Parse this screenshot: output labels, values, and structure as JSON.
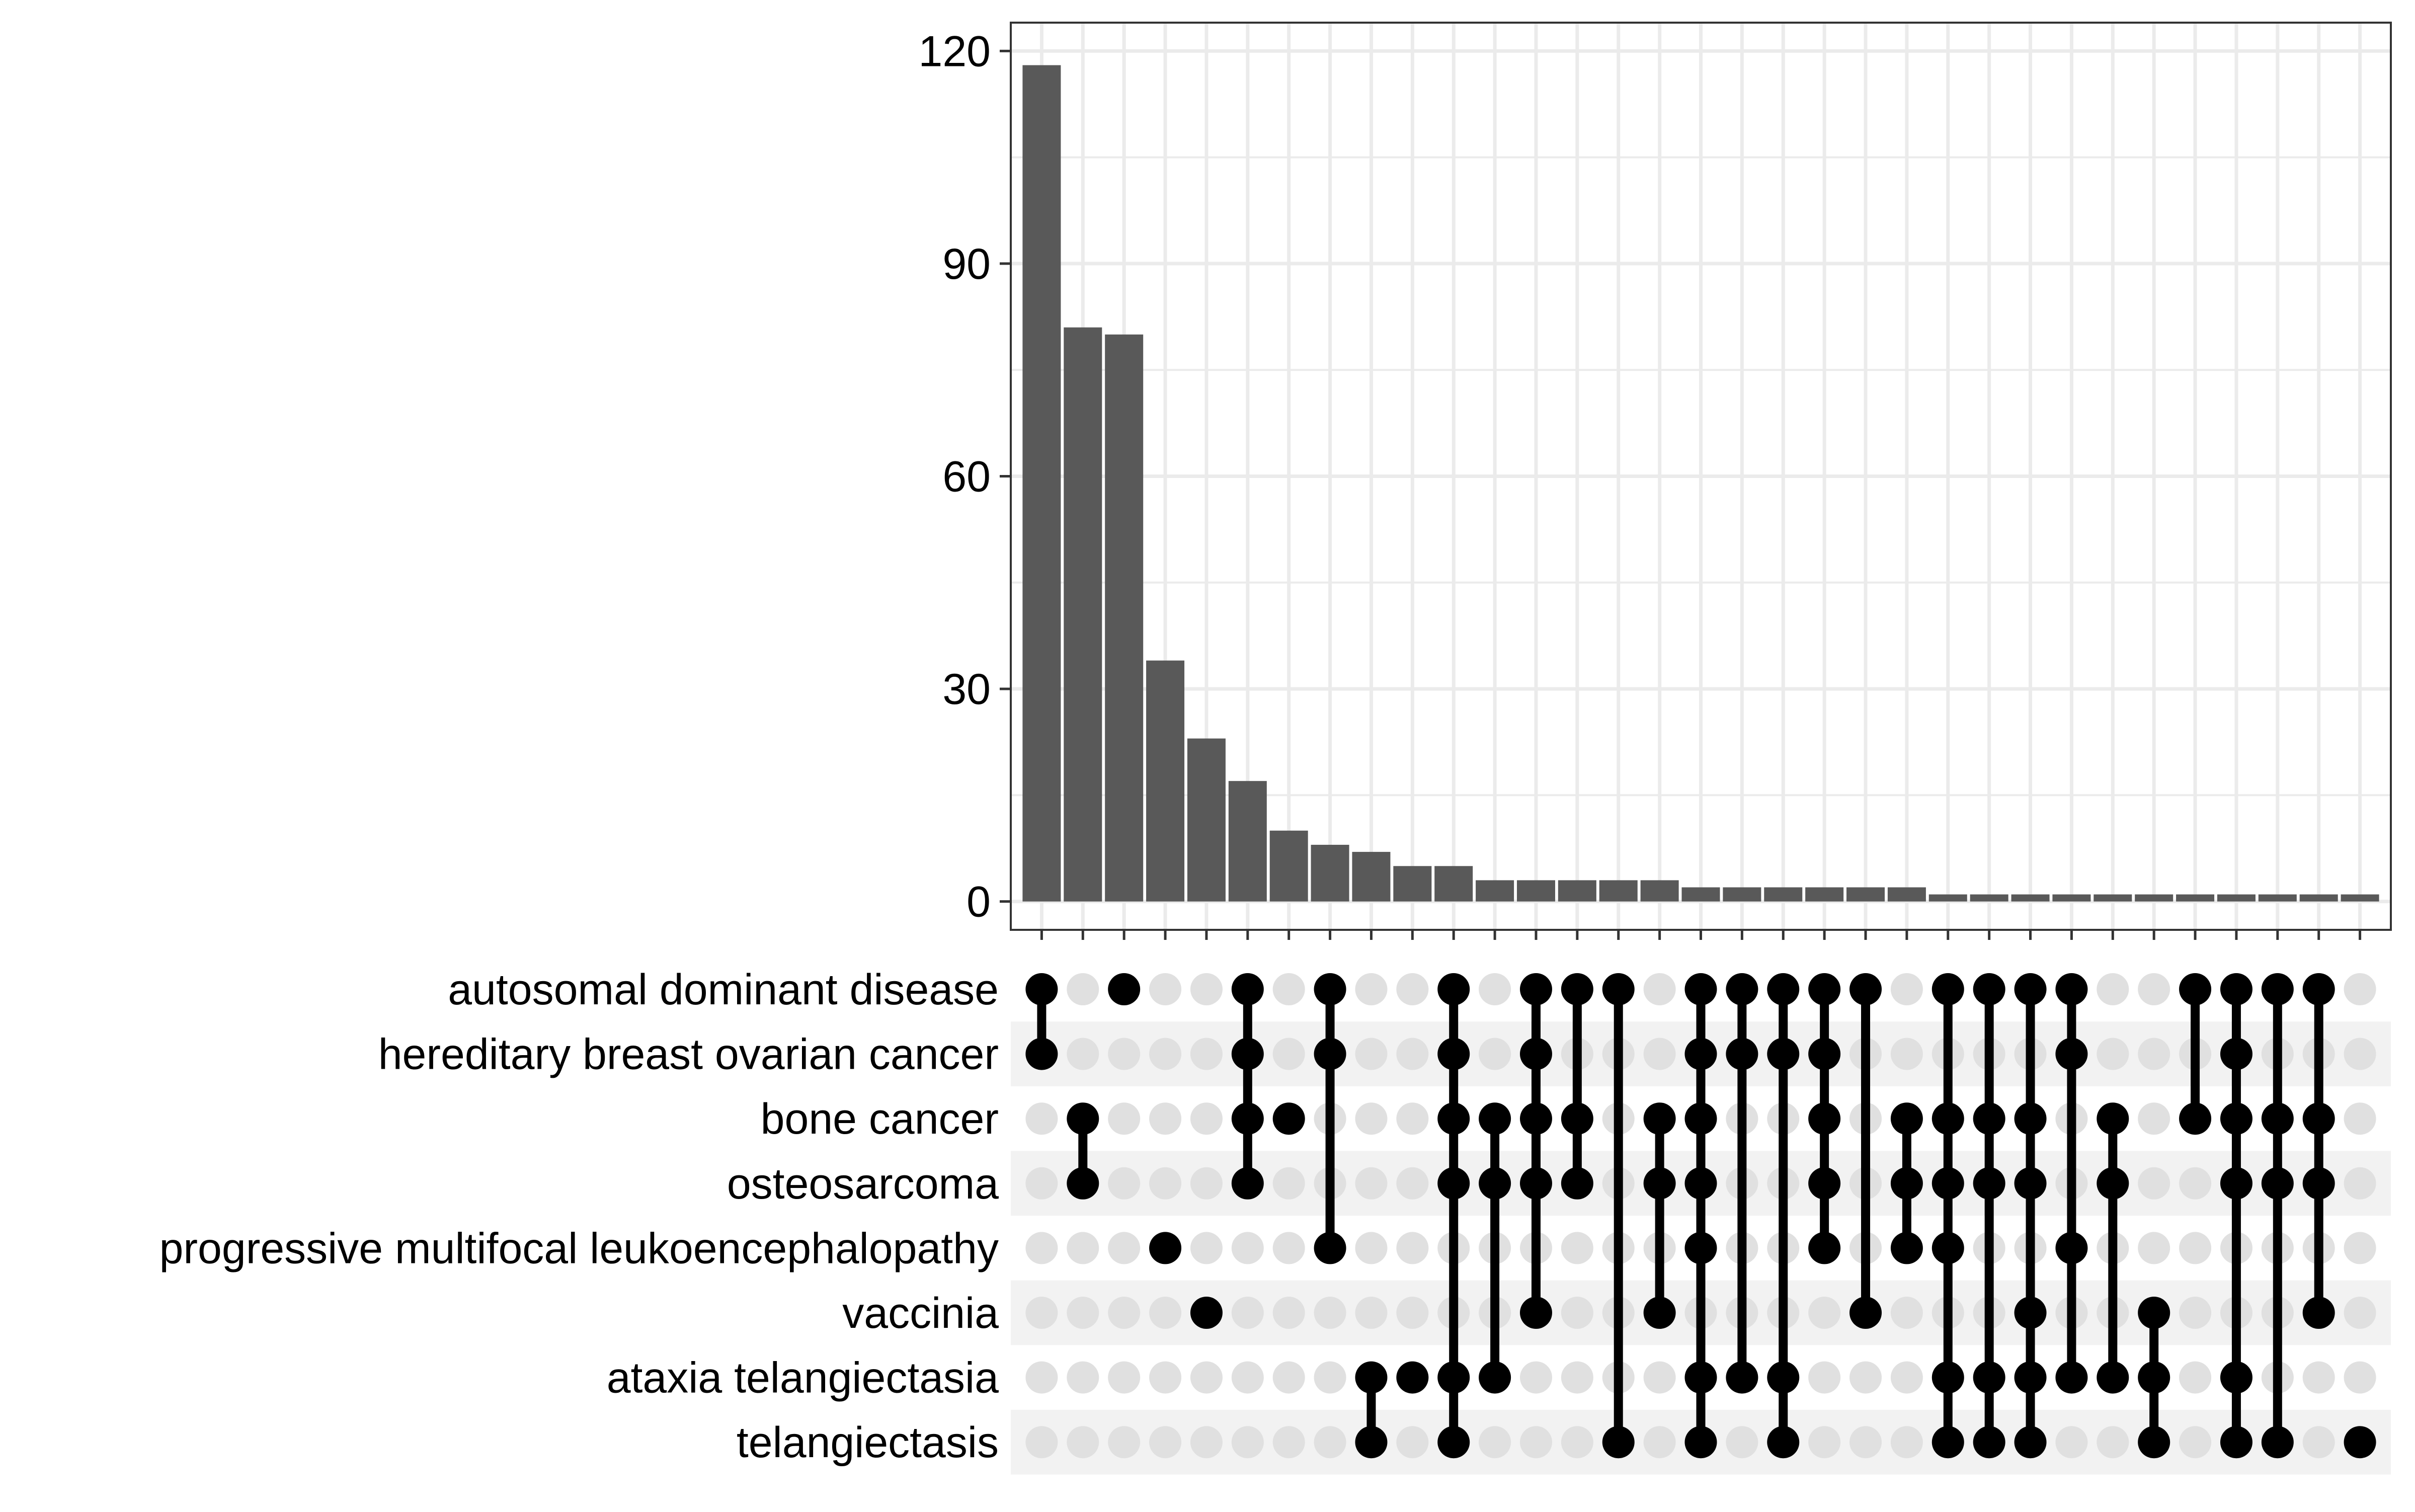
{
  "chart_data": {
    "type": "upset",
    "title": "",
    "xlabel": "",
    "ylabel": "",
    "ylim": [
      -4,
      124
    ],
    "yticks": [
      0,
      30,
      60,
      90,
      120
    ],
    "grid": true,
    "legend": "none",
    "sets": [
      "autosomal dominant disease",
      "hereditary breast ovarian cancer",
      "bone cancer",
      "osteosarcoma",
      "progressive multifocal leukoencephalopathy",
      "vaccinia",
      "ataxia telangiectasia",
      "telangiectasis"
    ],
    "intersections": [
      {
        "count": 118,
        "members": [
          0,
          1
        ]
      },
      {
        "count": 81,
        "members": [
          2,
          3
        ]
      },
      {
        "count": 80,
        "members": [
          0
        ]
      },
      {
        "count": 34,
        "members": [
          4
        ]
      },
      {
        "count": 23,
        "members": [
          5
        ]
      },
      {
        "count": 17,
        "members": [
          0,
          1,
          2,
          3
        ]
      },
      {
        "count": 10,
        "members": [
          2
        ]
      },
      {
        "count": 8,
        "members": [
          0,
          1,
          4
        ]
      },
      {
        "count": 7,
        "members": [
          6,
          7
        ]
      },
      {
        "count": 5,
        "members": [
          6
        ]
      },
      {
        "count": 5,
        "members": [
          0,
          1,
          2,
          3,
          6,
          7
        ]
      },
      {
        "count": 3,
        "members": [
          2,
          3,
          6
        ]
      },
      {
        "count": 3,
        "members": [
          0,
          1,
          2,
          3,
          5
        ]
      },
      {
        "count": 3,
        "members": [
          0,
          2,
          3
        ]
      },
      {
        "count": 3,
        "members": [
          0,
          7
        ]
      },
      {
        "count": 3,
        "members": [
          2,
          3,
          5
        ]
      },
      {
        "count": 2,
        "members": [
          0,
          1,
          2,
          3,
          4,
          6,
          7
        ]
      },
      {
        "count": 2,
        "members": [
          0,
          1,
          6
        ]
      },
      {
        "count": 2,
        "members": [
          0,
          1,
          6,
          7
        ]
      },
      {
        "count": 2,
        "members": [
          0,
          1,
          2,
          3,
          4
        ]
      },
      {
        "count": 2,
        "members": [
          0,
          5
        ]
      },
      {
        "count": 2,
        "members": [
          2,
          3,
          4
        ]
      },
      {
        "count": 1,
        "members": [
          0,
          2,
          3,
          4,
          6,
          7
        ]
      },
      {
        "count": 1,
        "members": [
          0,
          2,
          3,
          6,
          7
        ]
      },
      {
        "count": 1,
        "members": [
          0,
          2,
          3,
          5,
          6,
          7
        ]
      },
      {
        "count": 1,
        "members": [
          0,
          1,
          4,
          6
        ]
      },
      {
        "count": 1,
        "members": [
          2,
          3,
          6
        ]
      },
      {
        "count": 1,
        "members": [
          5,
          6,
          7
        ]
      },
      {
        "count": 1,
        "members": [
          0,
          2
        ]
      },
      {
        "count": 1,
        "members": [
          0,
          1,
          2,
          3,
          6,
          7
        ]
      },
      {
        "count": 1,
        "members": [
          0,
          2,
          3,
          7
        ]
      },
      {
        "count": 1,
        "members": [
          0,
          2,
          3,
          5
        ]
      },
      {
        "count": 1,
        "members": [
          7
        ]
      }
    ],
    "colors": {
      "bar": "#595959",
      "dot_active": "#000000",
      "dot_inactive": "#e0e0e0",
      "grid": "#ebebeb",
      "stripe": "#f2f2f2"
    }
  }
}
